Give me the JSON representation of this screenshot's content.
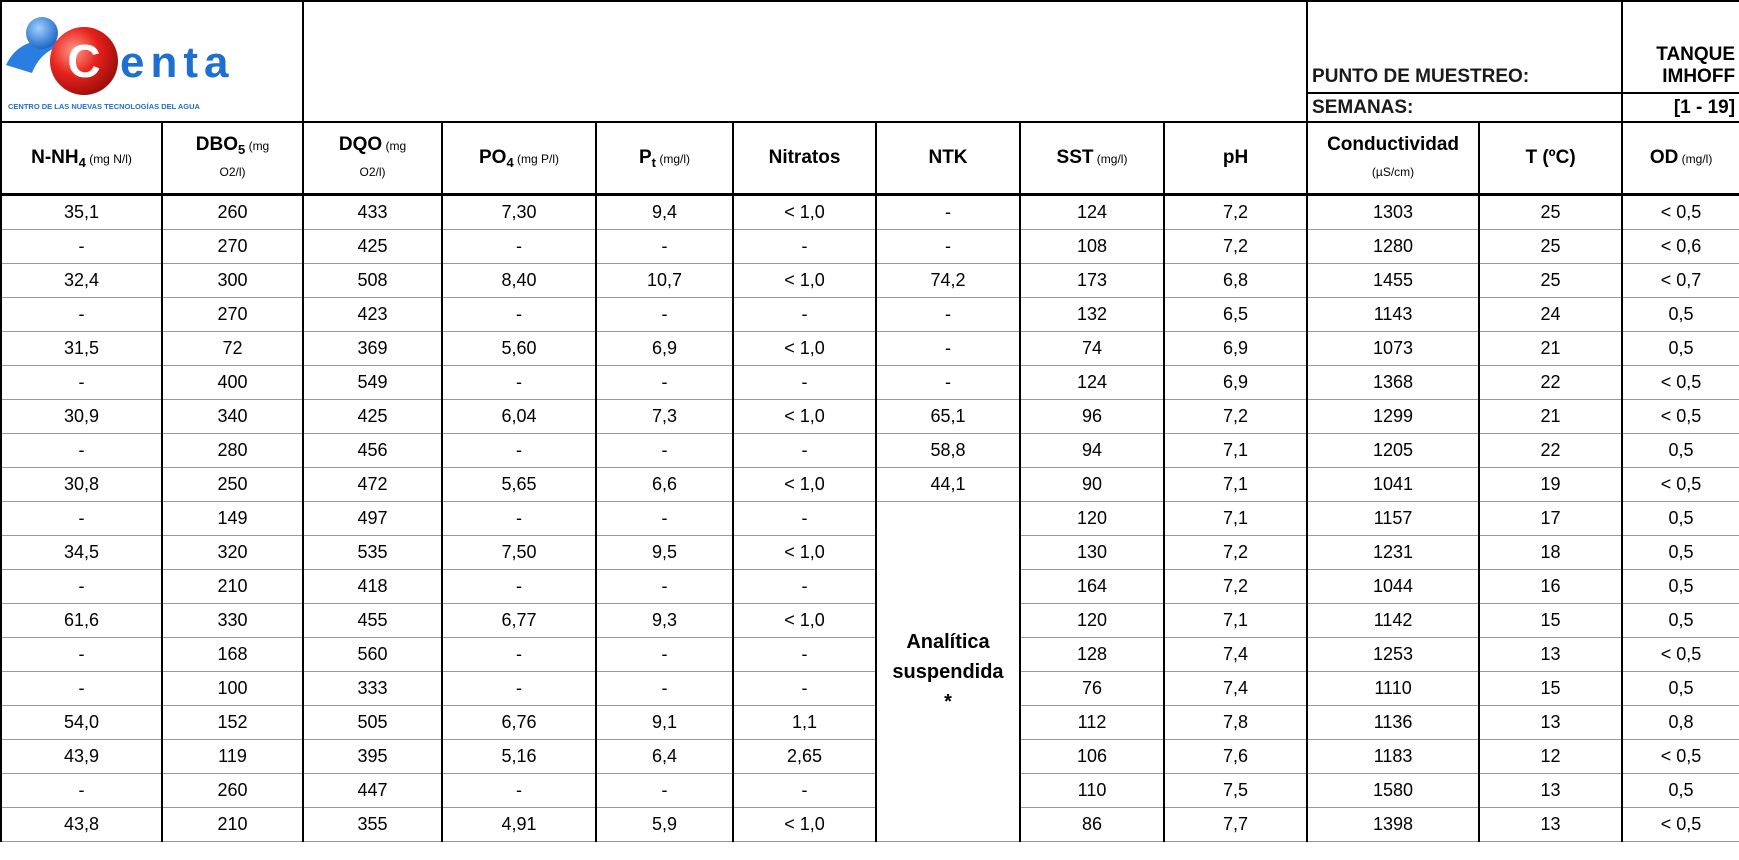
{
  "logo": {
    "initial": "C",
    "rest": "enta",
    "tagline": "CENTRO DE LAS NUEVAS TECNOLOGÍAS DEL AGUA"
  },
  "info": [
    {
      "label": "PUNTO DE MUESTREO:",
      "value": [
        "TANQUE",
        "IMHOFF"
      ]
    },
    {
      "label": "SEMANAS:",
      "value": [
        "[1 - 19]"
      ]
    }
  ],
  "table": {
    "headers": [
      [
        [
          {
            "t": "N-NH"
          },
          {
            "t": "4",
            "s": "sub"
          },
          {
            "t": " (mg N/l)",
            "s": "small"
          }
        ]
      ],
      [
        [
          {
            "t": "DBO"
          },
          {
            "t": "5",
            "s": "sub"
          },
          {
            "t": " (mg",
            "s": "small"
          }
        ],
        [
          {
            "t": "O2/l)",
            "s": "small"
          }
        ]
      ],
      [
        [
          {
            "t": "DQO"
          },
          {
            "t": " (mg",
            "s": "small"
          }
        ],
        [
          {
            "t": "O2/l)",
            "s": "small"
          }
        ]
      ],
      [
        [
          {
            "t": "PO"
          },
          {
            "t": "4",
            "s": "sub"
          },
          {
            "t": " (mg P/l)",
            "s": "small"
          }
        ]
      ],
      [
        [
          {
            "t": "P"
          },
          {
            "t": "t",
            "s": "sub"
          },
          {
            "t": " (mg/l)",
            "s": "small"
          }
        ]
      ],
      [
        [
          {
            "t": "Nitratos"
          }
        ]
      ],
      [
        [
          {
            "t": "NTK"
          }
        ]
      ],
      [
        [
          {
            "t": "SST"
          },
          {
            "t": " (mg/l)",
            "s": "small"
          }
        ]
      ],
      [
        [
          {
            "t": "pH"
          }
        ]
      ],
      [
        [
          {
            "t": "Conductividad"
          }
        ],
        [
          {
            "t": "(µS/cm)",
            "s": "small"
          }
        ]
      ],
      [
        [
          {
            "t": "T (ºC)"
          }
        ]
      ],
      [
        [
          {
            "t": "OD"
          },
          {
            "t": " (mg/l)",
            "s": "small"
          }
        ]
      ]
    ],
    "rows": [
      [
        "35,1",
        "260",
        "433",
        "7,30",
        "9,4",
        "< 1,0",
        "-",
        "124",
        "7,2",
        "1303",
        "25",
        "< 0,5"
      ],
      [
        "-",
        "270",
        "425",
        "-",
        "-",
        "-",
        "-",
        "108",
        "7,2",
        "1280",
        "25",
        "< 0,6"
      ],
      [
        "32,4",
        "300",
        "508",
        "8,40",
        "10,7",
        "< 1,0",
        "74,2",
        "173",
        "6,8",
        "1455",
        "25",
        "< 0,7"
      ],
      [
        "-",
        "270",
        "423",
        "-",
        "-",
        "-",
        "-",
        "132",
        "6,5",
        "1143",
        "24",
        "0,5"
      ],
      [
        "31,5",
        "72",
        "369",
        "5,60",
        "6,9",
        "< 1,0",
        "-",
        "74",
        "6,9",
        "1073",
        "21",
        "0,5"
      ],
      [
        "-",
        "400",
        "549",
        "-",
        "-",
        "-",
        "-",
        "124",
        "6,9",
        "1368",
        "22",
        "< 0,5"
      ],
      [
        "30,9",
        "340",
        "425",
        "6,04",
        "7,3",
        "< 1,0",
        "65,1",
        "96",
        "7,2",
        "1299",
        "21",
        "< 0,5"
      ],
      [
        "-",
        "280",
        "456",
        "-",
        "-",
        "-",
        "58,8",
        "94",
        "7,1",
        "1205",
        "22",
        "0,5"
      ],
      [
        "30,8",
        "250",
        "472",
        "5,65",
        "6,6",
        "< 1,0",
        "44,1",
        "90",
        "7,1",
        "1041",
        "19",
        "< 0,5"
      ],
      [
        "-",
        "149",
        "497",
        "-",
        "-",
        "-",
        {
          "lines": [
            "Analítica",
            "suspendida",
            "*"
          ]
        },
        "120",
        "7,1",
        "1157",
        "17",
        "0,5"
      ],
      [
        "34,5",
        "320",
        "535",
        "7,50",
        "9,5",
        "< 1,0",
        "130",
        "7,2",
        "1231",
        "18",
        "0,5"
      ],
      [
        "-",
        "210",
        "418",
        "-",
        "-",
        "-",
        "164",
        "7,2",
        "1044",
        "16",
        "0,5"
      ],
      [
        "61,6",
        "330",
        "455",
        "6,77",
        "9,3",
        "< 1,0",
        "120",
        "7,1",
        "1142",
        "15",
        "0,5"
      ],
      [
        "-",
        "168",
        "560",
        "-",
        "-",
        "-",
        "128",
        "7,4",
        "1253",
        "13",
        "< 0,5"
      ],
      [
        "-",
        "100",
        "333",
        "-",
        "-",
        "-",
        "76",
        "7,4",
        "1110",
        "15",
        "0,5"
      ],
      [
        "54,0",
        "152",
        "505",
        "6,76",
        "9,1",
        "1,1",
        "112",
        "7,8",
        "1136",
        "13",
        "0,8"
      ],
      [
        "43,9",
        "119",
        "395",
        "5,16",
        "6,4",
        "2,65",
        "106",
        "7,6",
        "1183",
        "12",
        "< 0,5"
      ],
      [
        "-",
        "260",
        "447",
        "-",
        "-",
        "-",
        "110",
        "7,5",
        "1580",
        "13",
        "0,5"
      ],
      [
        "43,8",
        "210",
        "355",
        "4,91",
        "5,9",
        "< 1,0",
        "86",
        "7,7",
        "1398",
        "13",
        "< 0,5"
      ]
    ]
  }
}
